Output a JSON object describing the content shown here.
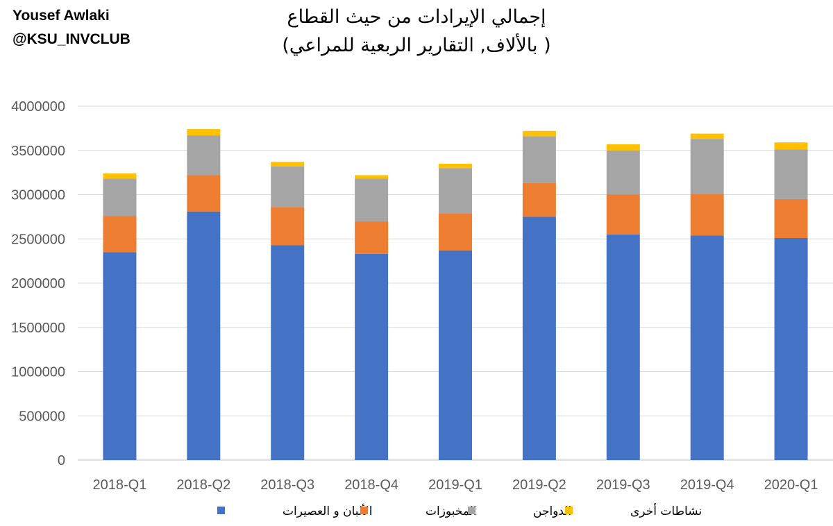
{
  "header": {
    "author_name": "Yousef Awlaki",
    "author_handle": "@KSU_INVCLUB"
  },
  "chart_data": {
    "type": "bar",
    "stacked": true,
    "title": "إجمالي الإيرادات من حيث القطاع",
    "subtitle": "( بالألاف, التقارير الربعية للمراعي)",
    "xlabel": "",
    "ylabel": "",
    "ylim": [
      0,
      4000000
    ],
    "yticks": [
      0,
      500000,
      1000000,
      1500000,
      2000000,
      2500000,
      3000000,
      3500000,
      4000000
    ],
    "grid": true,
    "legend_position": "bottom",
    "categories": [
      "2018-Q1",
      "2018-Q2",
      "2018-Q3",
      "2018-Q4",
      "2019-Q1",
      "2019-Q2",
      "2019-Q3",
      "2019-Q4",
      "2020-Q1"
    ],
    "series": [
      {
        "name": "الألبان و العصيرات",
        "color": "#4472C4",
        "values": [
          2350000,
          2810000,
          2430000,
          2330000,
          2370000,
          2750000,
          2550000,
          2540000,
          2510000
        ]
      },
      {
        "name": "المخبوزات",
        "color": "#ED7D31",
        "values": [
          410000,
          410000,
          430000,
          370000,
          420000,
          380000,
          450000,
          470000,
          440000
        ]
      },
      {
        "name": "الدواجن",
        "color": "#A5A5A5",
        "values": [
          420000,
          450000,
          460000,
          480000,
          510000,
          530000,
          500000,
          620000,
          560000
        ]
      },
      {
        "name": "نشاطات أخرى",
        "color": "#FFC000",
        "values": [
          60000,
          70000,
          50000,
          40000,
          50000,
          60000,
          70000,
          60000,
          80000
        ]
      }
    ]
  }
}
